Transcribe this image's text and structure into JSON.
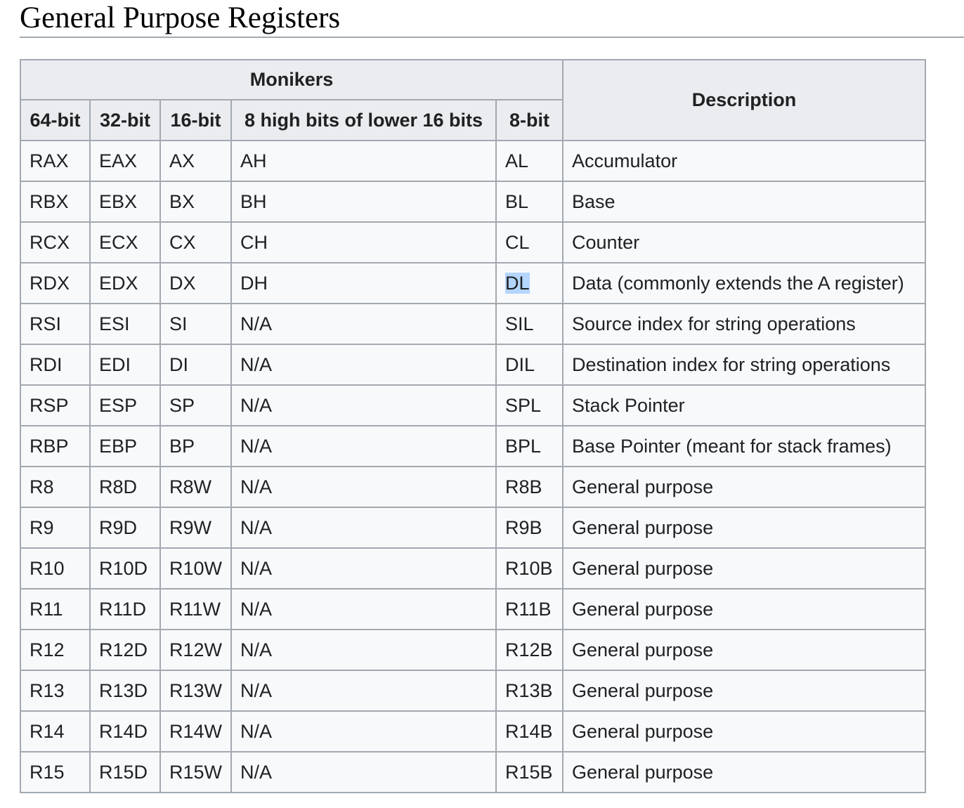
{
  "page": {
    "title": "General Purpose Registers"
  },
  "table": {
    "group_header": "Monikers",
    "description_header": "Description",
    "columns": [
      "64-bit",
      "32-bit",
      "16-bit",
      "8 high bits of lower 16 bits",
      "8-bit"
    ],
    "rows": [
      [
        "RAX",
        "EAX",
        "AX",
        "AH",
        "AL",
        "Accumulator"
      ],
      [
        "RBX",
        "EBX",
        "BX",
        "BH",
        "BL",
        "Base"
      ],
      [
        "RCX",
        "ECX",
        "CX",
        "CH",
        "CL",
        "Counter"
      ],
      [
        "RDX",
        "EDX",
        "DX",
        "DH",
        "DL",
        "Data (commonly extends the A register)"
      ],
      [
        "RSI",
        "ESI",
        "SI",
        "N/A",
        "SIL",
        "Source index for string operations"
      ],
      [
        "RDI",
        "EDI",
        "DI",
        "N/A",
        "DIL",
        "Destination index for string operations"
      ],
      [
        "RSP",
        "ESP",
        "SP",
        "N/A",
        "SPL",
        "Stack Pointer"
      ],
      [
        "RBP",
        "EBP",
        "BP",
        "N/A",
        "BPL",
        "Base Pointer (meant for stack frames)"
      ],
      [
        "R8",
        "R8D",
        "R8W",
        "N/A",
        "R8B",
        "General purpose"
      ],
      [
        "R9",
        "R9D",
        "R9W",
        "N/A",
        "R9B",
        "General purpose"
      ],
      [
        "R10",
        "R10D",
        "R10W",
        "N/A",
        "R10B",
        "General purpose"
      ],
      [
        "R11",
        "R11D",
        "R11W",
        "N/A",
        "R11B",
        "General purpose"
      ],
      [
        "R12",
        "R12D",
        "R12W",
        "N/A",
        "R12B",
        "General purpose"
      ],
      [
        "R13",
        "R13D",
        "R13W",
        "N/A",
        "R13B",
        "General purpose"
      ],
      [
        "R14",
        "R14D",
        "R14W",
        "N/A",
        "R14B",
        "General purpose"
      ],
      [
        "R15",
        "R15D",
        "R15W",
        "N/A",
        "R15B",
        "General purpose"
      ]
    ],
    "selected_text": "DL",
    "colors": {
      "header_background": "#eaecf0",
      "cell_background": "#f8f9fa",
      "border": "#a2a9b1",
      "selection": "#b4d5fe"
    }
  }
}
